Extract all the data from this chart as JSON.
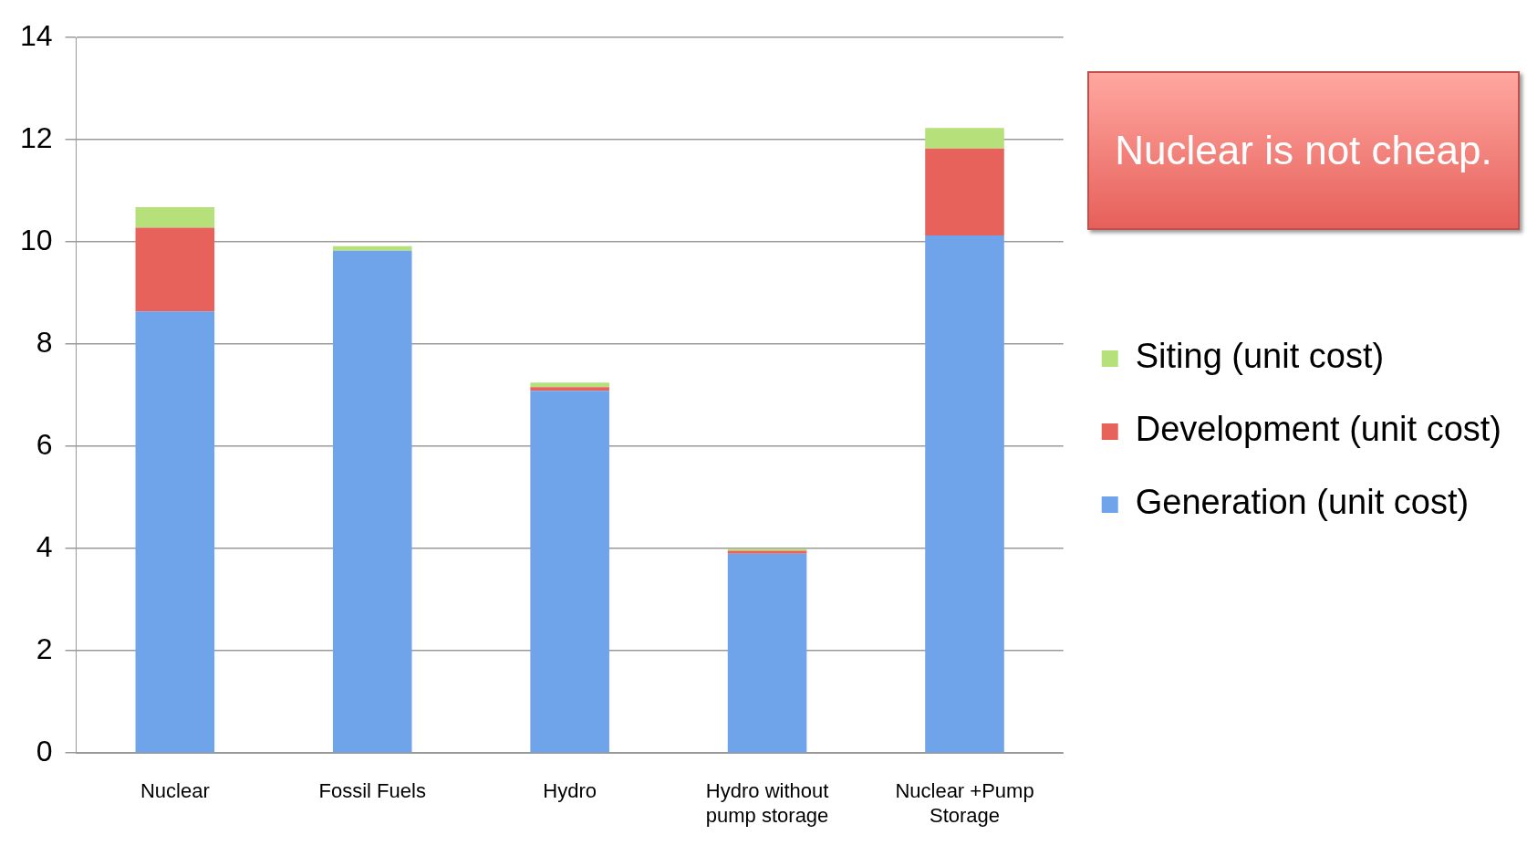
{
  "chart_data": {
    "type": "bar",
    "stacked": true,
    "categories": [
      "Nuclear",
      "Fossil Fuels",
      "Hydro",
      "Hydro without pump storage",
      "Nuclear +Pump Storage"
    ],
    "series": [
      {
        "name": "Generation (unit cost)",
        "color": "#6fa3ea",
        "values": [
          8.64,
          9.83,
          7.09,
          3.9,
          10.13
        ]
      },
      {
        "name": "Development (unit cost)",
        "color": "#e8625c",
        "values": [
          1.64,
          0,
          0.07,
          0.06,
          1.7
        ]
      },
      {
        "name": "Siting (unit cost)",
        "color": "#b5e07a",
        "values": [
          0.4,
          0.09,
          0.09,
          0.04,
          0.4
        ]
      }
    ],
    "ylim": [
      0,
      14
    ],
    "yticks": [
      0,
      2,
      4,
      6,
      8,
      10,
      12,
      14
    ],
    "grid": "y",
    "legend": "right",
    "annotations": [
      "Nuclear is not cheap."
    ]
  }
}
